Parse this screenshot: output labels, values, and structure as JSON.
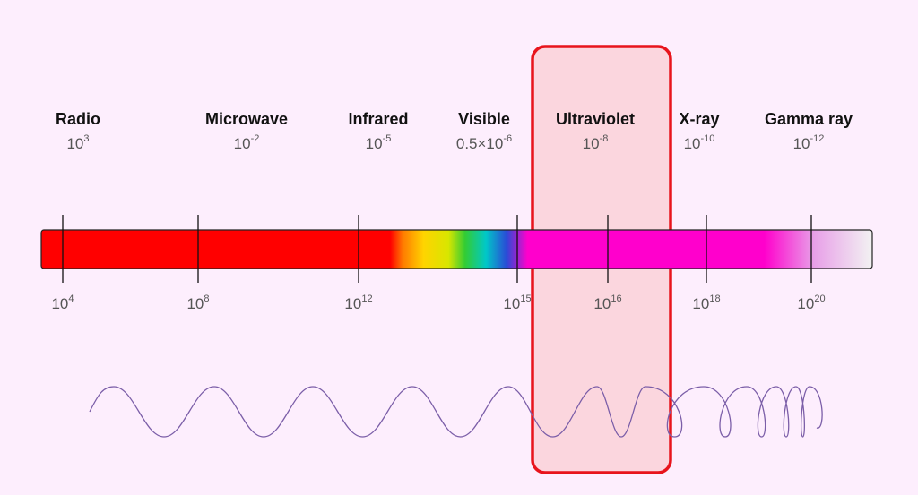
{
  "bands": [
    {
      "name": "Radio",
      "wavelength_base": "10",
      "wavelength_exp": "3"
    },
    {
      "name": "Microwave",
      "wavelength_base": "10",
      "wavelength_exp": "-2"
    },
    {
      "name": "Infrared",
      "wavelength_base": "10",
      "wavelength_exp": "-5"
    },
    {
      "name": "Visible",
      "wavelength_base": "0.5×10",
      "wavelength_exp": "-6"
    },
    {
      "name": "Ultraviolet",
      "wavelength_base": "10",
      "wavelength_exp": "-8"
    },
    {
      "name": "X-ray",
      "wavelength_base": "10",
      "wavelength_exp": "-10"
    },
    {
      "name": "Gamma ray",
      "wavelength_base": "10",
      "wavelength_exp": "-12"
    }
  ],
  "frequency_ticks": [
    {
      "base": "10",
      "exp": "4"
    },
    {
      "base": "10",
      "exp": "8"
    },
    {
      "base": "10",
      "exp": "12"
    },
    {
      "base": "10",
      "exp": "15"
    },
    {
      "base": "10",
      "exp": "16"
    },
    {
      "base": "10",
      "exp": "18"
    },
    {
      "base": "10",
      "exp": "20"
    }
  ],
  "highlight": {
    "band": "Ultraviolet",
    "color": "#e8141c"
  },
  "colors": {
    "background": "#fdeefd",
    "radio_band": "#ff0000",
    "uv_band": "#ff00cc",
    "wave": "#7b5ea8"
  }
}
